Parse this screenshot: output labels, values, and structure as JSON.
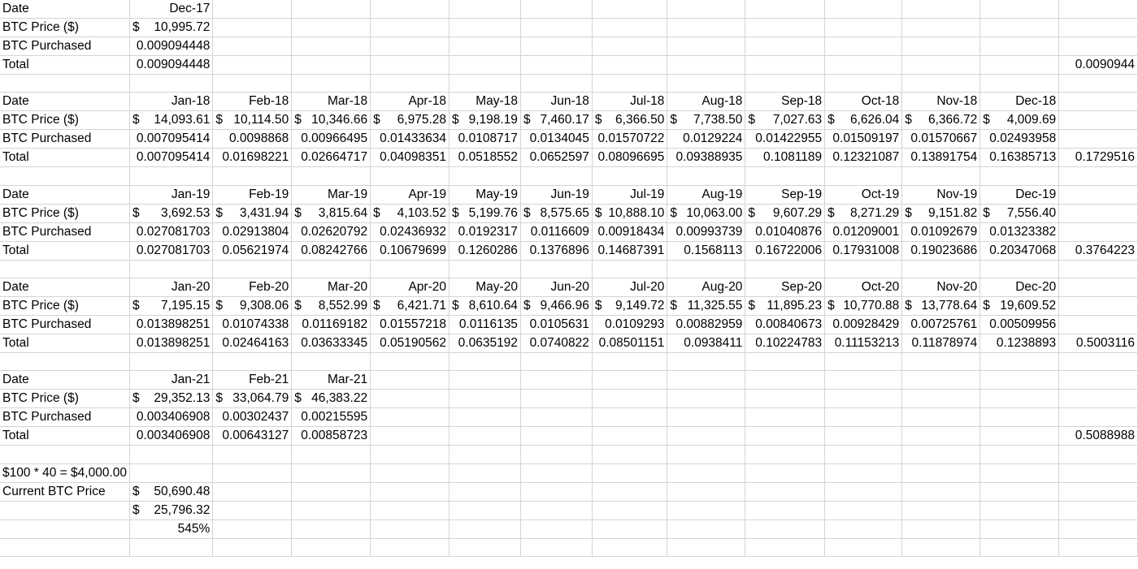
{
  "sheet": {
    "rows": [
      [
        "Date",
        "Dec-17",
        "",
        "",
        "",
        "",
        "",
        "",
        "",
        "",
        "",
        "",
        "",
        ""
      ],
      [
        "BTC Price ($)",
        "$ 10,995.72",
        "",
        "",
        "",
        "",
        "",
        "",
        "",
        "",
        "",
        "",
        "",
        ""
      ],
      [
        "BTC Purchased",
        "0.009094448",
        "",
        "",
        "",
        "",
        "",
        "",
        "",
        "",
        "",
        "",
        "",
        ""
      ],
      [
        "Total",
        "0.009094448",
        "",
        "",
        "",
        "",
        "",
        "",
        "",
        "",
        "",
        "",
        "",
        "0.0090944"
      ],
      [
        "",
        "",
        "",
        "",
        "",
        "",
        "",
        "",
        "",
        "",
        "",
        "",
        "",
        ""
      ],
      [
        "Date",
        "Jan-18",
        "Feb-18",
        "Mar-18",
        "Apr-18",
        "May-18",
        "Jun-18",
        "Jul-18",
        "Aug-18",
        "Sep-18",
        "Oct-18",
        "Nov-18",
        "Dec-18",
        ""
      ],
      [
        "BTC Price ($)",
        "$ 14,093.61",
        "$ 10,114.50",
        "$ 10,346.66",
        "$ 6,975.28",
        "$ 9,198.19",
        "$ 7,460.17",
        "$ 6,366.50",
        "$ 7,738.50",
        "$ 7,027.63",
        "$ 6,626.04",
        "$ 6,366.72",
        "$ 4,009.69",
        ""
      ],
      [
        "BTC Purchased",
        "0.007095414",
        "0.0098868",
        "0.00966495",
        "0.01433634",
        "0.0108717",
        "0.0134045",
        "0.01570722",
        "0.0129224",
        "0.01422955",
        "0.01509197",
        "0.01570667",
        "0.02493958",
        ""
      ],
      [
        "Total",
        "0.007095414",
        "0.01698221",
        "0.02664717",
        "0.04098351",
        "0.0518552",
        "0.0652597",
        "0.08096695",
        "0.09388935",
        "0.1081189",
        "0.12321087",
        "0.13891754",
        "0.16385713",
        "0.1729516"
      ],
      [
        "",
        "",
        "",
        "",
        "",
        "",
        "",
        "",
        "",
        "",
        "",
        "",
        "",
        ""
      ],
      [
        "Date",
        "Jan-19",
        "Feb-19",
        "Mar-19",
        "Apr-19",
        "May-19",
        "Jun-19",
        "Jul-19",
        "Aug-19",
        "Sep-19",
        "Oct-19",
        "Nov-19",
        "Dec-19",
        ""
      ],
      [
        "BTC Price ($)",
        "$ 3,692.53",
        "$ 3,431.94",
        "$ 3,815.64",
        "$ 4,103.52",
        "$ 5,199.76",
        "$ 8,575.65",
        "$ 10,888.10",
        "$ 10,063.00",
        "$ 9,607.29",
        "$ 8,271.29",
        "$ 9,151.82",
        "$ 7,556.40",
        ""
      ],
      [
        "BTC Purchased",
        "0.027081703",
        "0.02913804",
        "0.02620792",
        "0.02436932",
        "0.0192317",
        "0.0116609",
        "0.00918434",
        "0.00993739",
        "0.01040876",
        "0.01209001",
        "0.01092679",
        "0.01323382",
        ""
      ],
      [
        "Total",
        "0.027081703",
        "0.05621974",
        "0.08242766",
        "0.10679699",
        "0.1260286",
        "0.1376896",
        "0.14687391",
        "0.1568113",
        "0.16722006",
        "0.17931008",
        "0.19023686",
        "0.20347068",
        "0.3764223"
      ],
      [
        "",
        "",
        "",
        "",
        "",
        "",
        "",
        "",
        "",
        "",
        "",
        "",
        "",
        ""
      ],
      [
        "Date",
        "Jan-20",
        "Feb-20",
        "Mar-20",
        "Apr-20",
        "May-20",
        "Jun-20",
        "Jul-20",
        "Aug-20",
        "Sep-20",
        "Oct-20",
        "Nov-20",
        "Dec-20",
        ""
      ],
      [
        "BTC Price ($)",
        "$ 7,195.15",
        "$ 9,308.06",
        "$ 8,552.99",
        "$ 6,421.71",
        "$ 8,610.64",
        "$ 9,466.96",
        "$ 9,149.72",
        "$ 11,325.55",
        "$ 11,895.23",
        "$ 10,770.88",
        "$ 13,778.64",
        "$ 19,609.52",
        ""
      ],
      [
        "BTC Purchased",
        "0.013898251",
        "0.01074338",
        "0.01169182",
        "0.01557218",
        "0.0116135",
        "0.0105631",
        "0.0109293",
        "0.00882959",
        "0.00840673",
        "0.00928429",
        "0.00725761",
        "0.00509956",
        ""
      ],
      [
        "Total",
        "0.013898251",
        "0.02464163",
        "0.03633345",
        "0.05190562",
        "0.0635192",
        "0.0740822",
        "0.08501151",
        "0.0938411",
        "0.10224783",
        "0.11153213",
        "0.11878974",
        "0.1238893",
        "0.5003116"
      ],
      [
        "",
        "",
        "",
        "",
        "",
        "",
        "",
        "",
        "",
        "",
        "",
        "",
        "",
        ""
      ],
      [
        "Date",
        "Jan-21",
        "Feb-21",
        "Mar-21",
        "",
        "",
        "",
        "",
        "",
        "",
        "",
        "",
        "",
        ""
      ],
      [
        "BTC Price ($)",
        "$ 29,352.13",
        "$ 33,064.79",
        "$ 46,383.22",
        "",
        "",
        "",
        "",
        "",
        "",
        "",
        "",
        "",
        ""
      ],
      [
        "BTC Purchased",
        "0.003406908",
        "0.00302437",
        "0.00215595",
        "",
        "",
        "",
        "",
        "",
        "",
        "",
        "",
        "",
        ""
      ],
      [
        "Total",
        "0.003406908",
        "0.00643127",
        "0.00858723",
        "",
        "",
        "",
        "",
        "",
        "",
        "",
        "",
        "",
        "0.5088988"
      ],
      [
        "",
        "",
        "",
        "",
        "",
        "",
        "",
        "",
        "",
        "",
        "",
        "",
        "",
        ""
      ],
      [
        "$100 * 40 = $4,000.00",
        "",
        "",
        "",
        "",
        "",
        "",
        "",
        "",
        "",
        "",
        "",
        "",
        ""
      ],
      [
        "Current BTC Price",
        "$ 50,690.48",
        "",
        "",
        "",
        "",
        "",
        "",
        "",
        "",
        "",
        "",
        "",
        ""
      ],
      [
        "",
        "$ 25,796.32",
        "",
        "",
        "",
        "",
        "",
        "",
        "",
        "",
        "",
        "",
        "",
        ""
      ],
      [
        "",
        "545%",
        "",
        "",
        "",
        "",
        "",
        "",
        "",
        "",
        "",
        "",
        "",
        ""
      ],
      [
        "",
        "",
        "",
        "",
        "",
        "",
        "",
        "",
        "",
        "",
        "",
        "",
        "",
        ""
      ]
    ]
  }
}
